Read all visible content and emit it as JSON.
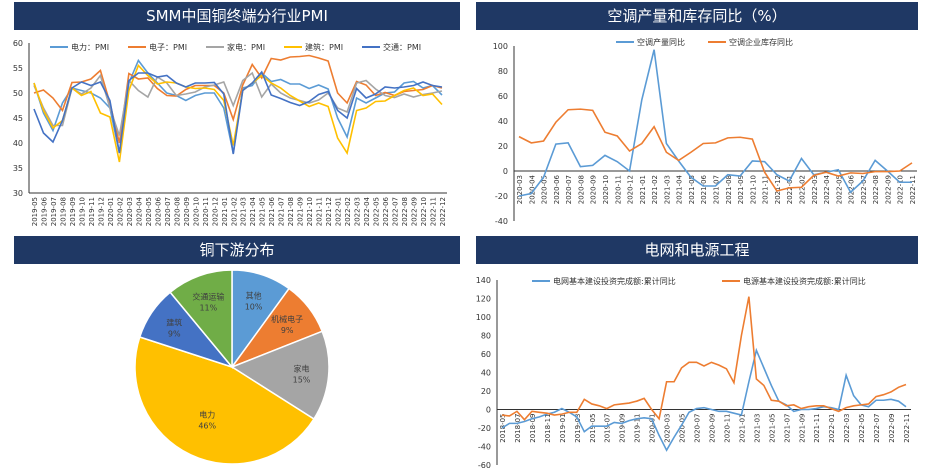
{
  "panels": {
    "pmi": "SMM中国铜终端分行业PMI",
    "ac": "空调产量和库存同比（%）",
    "pie": "铜下游分布",
    "grid": "电网和电源工程"
  },
  "chart_data": [
    {
      "type": "line",
      "title": "SMM中国铜终端分行业PMI",
      "ylim": [
        30,
        60
      ],
      "yticks": [
        30,
        35,
        40,
        45,
        50,
        55,
        60
      ],
      "legend": "top",
      "x": [
        "2019-05",
        "2019-06",
        "2019-07",
        "2019-08",
        "2019-09",
        "2019-10",
        "2019-11",
        "2019-12",
        "2020-01",
        "2020-02",
        "2020-03",
        "2020-04",
        "2020-05",
        "2020-06",
        "2020-07",
        "2020-08",
        "2020-09",
        "2020-10",
        "2020-11",
        "2020-12",
        "2021-01",
        "2021-02",
        "2021-03",
        "2021-04",
        "2021-05",
        "2021-06",
        "2021-07",
        "2021-08",
        "2021-09",
        "2021-10",
        "2021-11",
        "2021-12",
        "2022-01",
        "2022-02",
        "2022-03",
        "2022-04",
        "2022-05",
        "2022-06",
        "2022-07",
        "2022-08",
        "2022-09",
        "2022-10",
        "2022-11",
        "2022-12"
      ],
      "series": [
        {
          "name": "电力：PMI",
          "color": "#5b9bd5",
          "values": [
            52,
            46,
            42.5,
            48,
            51,
            50.5,
            50,
            49,
            47,
            38,
            52,
            56.5,
            54,
            52,
            50,
            49.5,
            48.5,
            49.5,
            50,
            50,
            47,
            38,
            51,
            51.5,
            54,
            52.3,
            52.7,
            51.8,
            51.8,
            50.9,
            51.6,
            50.8,
            45,
            41.2,
            49,
            48,
            49,
            50,
            50.2,
            52,
            52.3,
            51,
            51.5,
            49.6
          ]
        },
        {
          "name": "电子：PMI",
          "color": "#ed7d31",
          "values": [
            50,
            50.6,
            49,
            46.5,
            52.1,
            52.2,
            52.8,
            54.5,
            48,
            40,
            53.9,
            52.8,
            53,
            50.9,
            49.5,
            49.4,
            50.7,
            51.5,
            51.5,
            51.5,
            50,
            44.7,
            51.6,
            55.7,
            53,
            56.9,
            56.6,
            57.2,
            57.3,
            57.5,
            57,
            56.4,
            50,
            48,
            52.3,
            51.6,
            49.5,
            50.1,
            49.5,
            50.3,
            50.5,
            50.7,
            51.5,
            51
          ]
        },
        {
          "name": "家电：PMI",
          "color": "#a5a5a5",
          "values": [
            51.5,
            47,
            43.5,
            43.5,
            51,
            49.8,
            51,
            53.5,
            47,
            41.5,
            52.5,
            50.5,
            49.2,
            53.2,
            52,
            49.5,
            49.8,
            50.2,
            51.2,
            51.6,
            52.2,
            47.5,
            52.5,
            54,
            49.2,
            51.8,
            50,
            49,
            48.5,
            48,
            48.6,
            50,
            47,
            46.2,
            52,
            52.5,
            50.8,
            49.5,
            49.1,
            49.8,
            49.2,
            49.7,
            50,
            50.4
          ]
        },
        {
          "name": "建筑：PMI",
          "color": "#ffc000",
          "values": [
            52,
            46.5,
            43,
            44.5,
            51,
            49.5,
            50.3,
            46,
            45.2,
            36.2,
            50.5,
            55.5,
            53.5,
            51.8,
            52.2,
            52,
            51.2,
            50.9,
            51,
            50.7,
            48.5,
            39.5,
            50.5,
            52,
            53.5,
            52,
            51,
            49.5,
            48.4,
            47.3,
            48,
            47.3,
            41,
            38,
            46.5,
            47,
            48.3,
            48.4,
            49.5,
            50.5,
            51,
            49.5,
            49.8,
            47.7
          ]
        },
        {
          "name": "交通：PMI",
          "color": "#4472c4",
          "values": [
            46.8,
            42,
            40.2,
            44.5,
            51,
            52.2,
            51.5,
            52.2,
            48.5,
            38,
            52.5,
            54,
            54,
            53.2,
            53.5,
            52,
            51.2,
            52,
            52,
            52.1,
            49.8,
            37.8,
            50.5,
            52,
            54.2,
            49.6,
            48.9,
            48.1,
            47.5,
            48.3,
            49.7,
            50.3,
            46.5,
            45,
            50.9,
            49,
            49.8,
            51.2,
            51,
            51.2,
            51.5,
            52.2,
            51.5,
            51.2
          ]
        }
      ]
    },
    {
      "type": "line",
      "title": "空调产量和库存同比（%）",
      "ylim": [
        -40,
        100
      ],
      "yticks": [
        -40,
        -20,
        0,
        20,
        40,
        60,
        80,
        100
      ],
      "legend": "top",
      "x": [
        "2020-03",
        "2020-04",
        "2020-05",
        "2020-06",
        "2020-07",
        "2020-08",
        "2020-09",
        "2020-10",
        "2020-11",
        "2020-12",
        "2021-01",
        "2021-02",
        "2021-03",
        "2021-04",
        "2021-05",
        "2021-06",
        "2021-07",
        "2021-08",
        "2021-09",
        "2021-10",
        "2021-11",
        "2021-12",
        "2022-01",
        "2022-02",
        "2022-03",
        "2022-04",
        "2022-05",
        "2022-06",
        "2022-07",
        "2022-08",
        "2022-09",
        "2022-10",
        "2022-11"
      ],
      "series": [
        {
          "name": "空调产量同比",
          "color": "#5b9bd5",
          "values": [
            -20,
            -18,
            -5,
            21.5,
            22.5,
            3.5,
            4.5,
            12.5,
            7.5,
            0,
            57,
            97,
            22,
            8,
            -5,
            -12,
            -12,
            -3,
            -4,
            8,
            7.5,
            -3,
            -8,
            10,
            -3,
            -1,
            1,
            -17,
            -8,
            8.5,
            0,
            -9,
            -9
          ]
        },
        {
          "name": "空调企业库存同比",
          "color": "#ed7d31",
          "values": [
            27.5,
            22.5,
            24,
            39,
            49,
            49.5,
            48.5,
            31,
            28,
            16,
            22,
            35.5,
            15,
            8.5,
            15,
            22,
            22.5,
            26.5,
            27,
            25.5,
            -1,
            -16,
            -13.5,
            -13,
            -3.5,
            -1,
            -4,
            -1.5,
            -2,
            -0.5,
            -0.5,
            0,
            6.5
          ]
        }
      ]
    },
    {
      "type": "pie",
      "title": "铜下游分布",
      "slices": [
        {
          "label": "其他",
          "value": 10,
          "pct": "10%",
          "color": "#5b9bd5"
        },
        {
          "label": "机械电子",
          "value": 9,
          "pct": "9%",
          "color": "#ed7d31"
        },
        {
          "label": "家电",
          "value": 15,
          "pct": "15%",
          "color": "#a5a5a5"
        },
        {
          "label": "电力",
          "value": 46,
          "pct": "46%",
          "color": "#ffc000"
        },
        {
          "label": "建筑",
          "value": 9,
          "pct": "9%",
          "color": "#4472c4"
        },
        {
          "label": "交通运输",
          "value": 11,
          "pct": "11%",
          "color": "#70ad47"
        }
      ]
    },
    {
      "type": "line",
      "title": "电网和电源工程",
      "ylim": [
        -60,
        140
      ],
      "yticks": [
        -60,
        -40,
        -20,
        0,
        20,
        40,
        60,
        80,
        100,
        120,
        140
      ],
      "legend": "top",
      "labelEvery": 2,
      "x": [
        "2018-05",
        "2018-06",
        "2018-07",
        "2018-08",
        "2018-09",
        "2018-10",
        "2018-11",
        "2018-12",
        "2019-01",
        "2019-02",
        "2019-03",
        "2019-04",
        "2019-05",
        "2019-06",
        "2019-07",
        "2019-08",
        "2019-09",
        "2019-10",
        "2019-11",
        "2019-12",
        "2020-01",
        "2020-02",
        "2020-03",
        "2020-04",
        "2020-05",
        "2020-06",
        "2020-07",
        "2020-08",
        "2020-09",
        "2020-10",
        "2020-11",
        "2020-12",
        "2021-01",
        "2021-02",
        "2021-03",
        "2021-04",
        "2021-05",
        "2021-06",
        "2021-07",
        "2021-08",
        "2021-09",
        "2021-10",
        "2021-11",
        "2021-12",
        "2022-01",
        "2022-02",
        "2022-03",
        "2022-04",
        "2022-05",
        "2022-06",
        "2022-07",
        "2022-08",
        "2022-09",
        "2022-10",
        "2022-11"
      ],
      "series": [
        {
          "name": "电网基本建设投资完成额:累计同比",
          "color": "#5b9bd5",
          "values": [
            -20,
            -15,
            -15,
            -13,
            -10,
            -8,
            -5,
            -3,
            1,
            -3,
            -8,
            -24,
            -18,
            -18,
            -18,
            -14,
            -15,
            -12,
            -10,
            -9,
            -10,
            -28,
            -44,
            -30,
            -17,
            -3,
            1,
            2,
            0,
            -2,
            -2,
            -4,
            -6,
            30,
            64,
            45,
            26,
            9,
            5,
            -2,
            0,
            0,
            1,
            3,
            2,
            0,
            37,
            15,
            5,
            3,
            10,
            10,
            11,
            9,
            3
          ]
        },
        {
          "name": "电源基本建设投资完成额:累计同比",
          "color": "#ed7d31",
          "values": [
            -6,
            -7,
            -2,
            -11,
            -2,
            -3,
            -4,
            -6,
            -5,
            -3,
            -3,
            11,
            6,
            4,
            1,
            5,
            6,
            7,
            9,
            12,
            0,
            -10,
            30,
            30,
            45,
            51,
            51,
            47,
            51,
            48,
            44,
            29,
            80,
            122,
            33,
            26,
            10,
            9,
            4,
            5,
            1,
            3,
            4,
            4,
            1,
            -2,
            2,
            4,
            5,
            6,
            14,
            16,
            19,
            24,
            27
          ]
        }
      ]
    }
  ]
}
